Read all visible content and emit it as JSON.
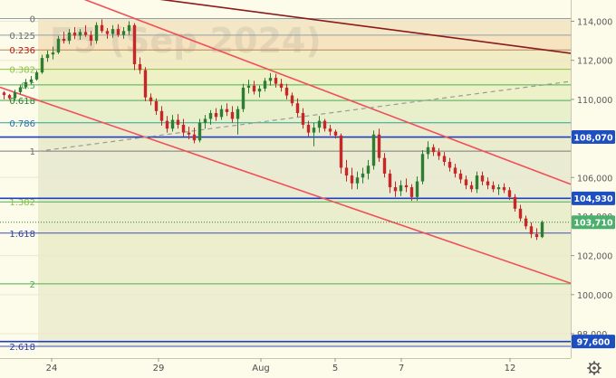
{
  "watermark": "F5 (Sep 2024)",
  "chart_data": {
    "type": "candlestick",
    "ylim": [
      97000,
      115500
    ],
    "y_ticks": [
      {
        "value": 114000,
        "label": "114,000"
      },
      {
        "value": 112000,
        "label": "112,000"
      },
      {
        "value": 110000,
        "label": "110,000"
      },
      {
        "value": 106000,
        "label": "106,000"
      },
      {
        "value": 102000,
        "label": "102,000"
      },
      {
        "value": 100000,
        "label": "100,000"
      },
      {
        "value": 98000,
        "label": "98,000"
      }
    ],
    "x_ticks": [
      "24",
      "29",
      "Aug",
      "5",
      "7",
      "12"
    ],
    "fib_levels": [
      {
        "ratio": "0",
        "value": 114140,
        "color": "#8fa0a8",
        "label_color": "#6f6f6f"
      },
      {
        "ratio": "0.125",
        "value": 113290,
        "color": "#8fa0a8",
        "label_color": "#6f6f6f"
      },
      {
        "ratio": "0.236",
        "value": 112530,
        "color": "#b8865a",
        "label_color": "#b71c1c"
      },
      {
        "ratio": "0.382",
        "value": 111540,
        "color": "#8bc34a",
        "label_color": "#8bc34a"
      },
      {
        "ratio": "0.5",
        "value": 110740,
        "color": "#4caf50",
        "label_color": "#4caf50"
      },
      {
        "ratio": "0.618",
        "value": 109940,
        "color": "#4caf50",
        "label_color": "#2e7d32"
      },
      {
        "ratio": "0.786",
        "value": 108800,
        "color": "#26a69a",
        "label_color": "#2a6fb0"
      },
      {
        "ratio": "1",
        "value": 107350,
        "color": "#7a7a7a",
        "label_color": "#6f6f6f"
      },
      {
        "ratio": "1.382",
        "value": 104750,
        "color": "#4caf50",
        "label_color": "#8bc34a"
      },
      {
        "ratio": "1.618",
        "value": 103150,
        "color": "#3f51b5",
        "label_color": "#303f9f"
      },
      {
        "ratio": "2",
        "value": 100550,
        "color": "#4caf50",
        "label_color": "#4caf50"
      },
      {
        "ratio": "2.618",
        "value": 97350,
        "color": "#3f51b5",
        "label_color": "#303f9f"
      }
    ],
    "hlines": [
      {
        "value": 108070,
        "label": "108,070",
        "color": "#1f3fbf"
      },
      {
        "value": 104930,
        "label": "104,930",
        "color": "#1f3fbf"
      },
      {
        "value": 97600,
        "label": "97,600",
        "color": "#1f3fbf"
      }
    ],
    "price_badges": [
      {
        "value": 108070,
        "label": "108,070",
        "bg": "#1e4fc0"
      },
      {
        "value": 104930,
        "label": "104,930",
        "bg": "#1e4fc0"
      },
      {
        "value": 103710,
        "label": "103,710",
        "bg": "#4caf6d"
      },
      {
        "value": 97600,
        "label": "97,600",
        "bg": "#1e4fc0"
      }
    ],
    "partial_tick_label": "104,000",
    "last_price": 103710,
    "trendlines": [
      {
        "role": "resistance-long",
        "color": "#8b1a1a",
        "p1": {
          "x": 0,
          "y": 116200
        },
        "p2": {
          "x": 630,
          "y": 112360
        }
      },
      {
        "role": "channel-upper",
        "color": "#f0505a",
        "p1": {
          "x": 80,
          "y": 115350
        },
        "p2": {
          "x": 630,
          "y": 105650
        }
      },
      {
        "role": "channel-lower",
        "color": "#f0505a",
        "p1": {
          "x": 0,
          "y": 110620
        },
        "p2": {
          "x": 630,
          "y": 100580
        }
      }
    ],
    "dashed_line": {
      "color": "#9a9a9a",
      "p1": {
        "x": 42,
        "y": 107340
      },
      "p2": {
        "x": 628,
        "y": 110910
      }
    },
    "candles": [
      [
        0,
        110350,
        110420,
        110000,
        110220
      ],
      [
        6,
        110220,
        110280,
        109980,
        110060
      ],
      [
        12,
        110060,
        110500,
        109940,
        110370
      ],
      [
        18,
        110370,
        110760,
        110250,
        110620
      ],
      [
        24,
        110620,
        111050,
        110530,
        110880
      ],
      [
        30,
        110880,
        111200,
        110780,
        111020
      ],
      [
        36,
        111020,
        111480,
        110960,
        111380
      ],
      [
        42,
        111380,
        112280,
        111300,
        112120
      ],
      [
        48,
        112120,
        112500,
        111920,
        112300
      ],
      [
        54,
        112300,
        112700,
        112050,
        112400
      ],
      [
        60,
        112400,
        113250,
        112320,
        113100
      ],
      [
        66,
        113100,
        113460,
        112860,
        113000
      ],
      [
        72,
        113000,
        113600,
        112830,
        113420
      ],
      [
        78,
        113420,
        113700,
        113080,
        113260
      ],
      [
        84,
        113260,
        113600,
        113050,
        113450
      ],
      [
        90,
        113450,
        113800,
        113200,
        113300
      ],
      [
        96,
        113300,
        113500,
        112750,
        113000
      ],
      [
        102,
        113000,
        113950,
        112850,
        113800
      ],
      [
        108,
        113800,
        114100,
        113400,
        113500
      ],
      [
        114,
        113500,
        113650,
        113100,
        113350
      ],
      [
        120,
        113350,
        113800,
        113150,
        113600
      ],
      [
        126,
        113600,
        113850,
        113200,
        113300
      ],
      [
        132,
        113300,
        113700,
        113100,
        113500
      ],
      [
        138,
        113500,
        114000,
        113300,
        113800
      ],
      [
        144,
        113800,
        113900,
        111500,
        111800
      ],
      [
        150,
        111800,
        112150,
        111300,
        111500
      ],
      [
        156,
        111500,
        111650,
        109900,
        110100
      ],
      [
        162,
        110100,
        110300,
        109700,
        109900
      ],
      [
        168,
        109900,
        110050,
        109200,
        109400
      ],
      [
        174,
        109400,
        109650,
        108650,
        108900
      ],
      [
        180,
        108900,
        109150,
        108300,
        108500
      ],
      [
        186,
        108500,
        109200,
        108350,
        108950
      ],
      [
        192,
        108950,
        109250,
        108500,
        108700
      ],
      [
        198,
        108700,
        109000,
        108100,
        108300
      ],
      [
        204,
        108300,
        108600,
        107950,
        108200
      ],
      [
        210,
        108200,
        108550,
        107750,
        107900
      ],
      [
        216,
        107900,
        109000,
        107800,
        108800
      ],
      [
        222,
        108800,
        109200,
        108500,
        109000
      ],
      [
        228,
        109000,
        109450,
        108700,
        109300
      ],
      [
        234,
        109300,
        109550,
        108900,
        109100
      ],
      [
        240,
        109100,
        109700,
        108950,
        109500
      ],
      [
        246,
        109500,
        109800,
        109150,
        109350
      ],
      [
        252,
        109350,
        109650,
        108800,
        109000
      ],
      [
        258,
        109000,
        109650,
        108200,
        109500
      ],
      [
        264,
        109500,
        110800,
        109350,
        110600
      ],
      [
        270,
        110600,
        111000,
        110300,
        110700
      ],
      [
        276,
        110700,
        110950,
        110250,
        110400
      ],
      [
        282,
        110400,
        110700,
        110100,
        110550
      ],
      [
        288,
        110550,
        111100,
        110400,
        110950
      ],
      [
        294,
        110950,
        111350,
        110700,
        111100
      ],
      [
        300,
        111100,
        111300,
        110600,
        110800
      ],
      [
        306,
        110800,
        111050,
        110400,
        110600
      ],
      [
        312,
        110600,
        110800,
        110000,
        110200
      ],
      [
        318,
        110200,
        110350,
        109650,
        109800
      ],
      [
        324,
        109800,
        110050,
        109100,
        109300
      ],
      [
        330,
        109300,
        109550,
        108500,
        108700
      ],
      [
        336,
        108700,
        108900,
        108100,
        108300
      ],
      [
        342,
        108300,
        108800,
        107600,
        108550
      ],
      [
        348,
        108550,
        109150,
        108300,
        108900
      ],
      [
        354,
        108900,
        109000,
        108350,
        108500
      ],
      [
        360,
        108500,
        108700,
        108150,
        108350
      ],
      [
        366,
        108350,
        108450,
        108000,
        108150
      ],
      [
        372,
        108150,
        108250,
        106200,
        106500
      ],
      [
        378,
        106500,
        106900,
        105800,
        106100
      ],
      [
        384,
        106100,
        106500,
        105400,
        105700
      ],
      [
        390,
        105700,
        106300,
        105400,
        106000
      ],
      [
        396,
        106000,
        106500,
        105700,
        106200
      ],
      [
        402,
        106200,
        106900,
        105900,
        106600
      ],
      [
        408,
        106600,
        108400,
        106400,
        108200
      ],
      [
        414,
        108200,
        108500,
        106800,
        107000
      ],
      [
        420,
        107000,
        107250,
        106000,
        106200
      ],
      [
        426,
        106200,
        106400,
        105200,
        105500
      ],
      [
        432,
        105500,
        105800,
        105000,
        105300
      ],
      [
        438,
        105300,
        105850,
        105050,
        105600
      ],
      [
        444,
        105600,
        105950,
        105250,
        105500
      ],
      [
        450,
        105500,
        105650,
        104800,
        105000
      ],
      [
        456,
        105000,
        106050,
        104800,
        105800
      ],
      [
        462,
        105800,
        107400,
        105650,
        107200
      ],
      [
        468,
        107200,
        107850,
        106950,
        107550
      ],
      [
        474,
        107550,
        107700,
        107100,
        107300
      ],
      [
        480,
        107300,
        107500,
        106900,
        107100
      ],
      [
        486,
        107100,
        107300,
        106600,
        106800
      ],
      [
        492,
        106800,
        107000,
        106300,
        106500
      ],
      [
        498,
        106500,
        106700,
        106000,
        106200
      ],
      [
        504,
        106200,
        106400,
        105700,
        105900
      ],
      [
        510,
        105900,
        106100,
        105400,
        105600
      ],
      [
        516,
        105600,
        105800,
        105250,
        105400
      ],
      [
        522,
        105400,
        106300,
        105200,
        106100
      ],
      [
        528,
        106100,
        106300,
        105600,
        105800
      ],
      [
        534,
        105800,
        106000,
        105400,
        105600
      ],
      [
        540,
        105600,
        105800,
        105250,
        105400
      ],
      [
        546,
        105400,
        105650,
        105100,
        105500
      ],
      [
        552,
        105500,
        105700,
        105200,
        105350
      ],
      [
        558,
        105350,
        105500,
        104850,
        105000
      ],
      [
        564,
        105000,
        105150,
        104250,
        104400
      ],
      [
        570,
        104400,
        104600,
        103750,
        103900
      ],
      [
        576,
        103900,
        104050,
        103350,
        103500
      ],
      [
        582,
        103500,
        103700,
        102900,
        103100
      ],
      [
        588,
        103100,
        103400,
        102800,
        102950
      ],
      [
        594,
        102950,
        103800,
        102900,
        103710
      ]
    ]
  }
}
